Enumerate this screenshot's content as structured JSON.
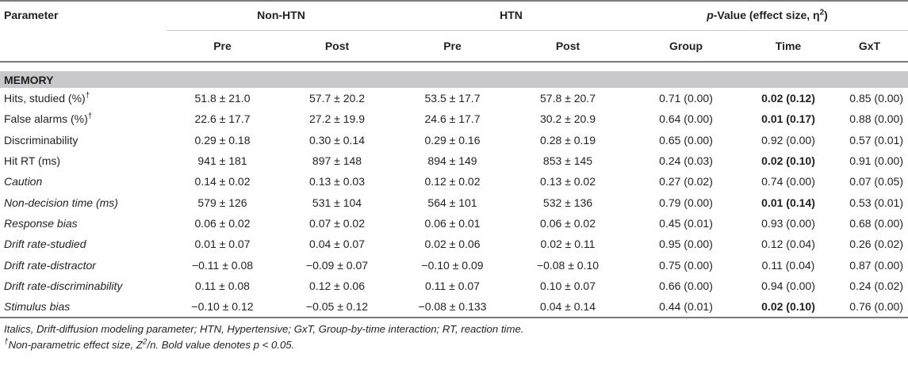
{
  "header": {
    "parameter": "Parameter",
    "group_non_htn": "Non-HTN",
    "group_htn": "HTN",
    "pvalue_p": "p",
    "pvalue_rest": "-Value (effect size, η",
    "pvalue_sup": "2",
    "pvalue_close": ")",
    "pre": "Pre",
    "post": "Post",
    "pre2": "Pre",
    "post2": "Post",
    "group": "Group",
    "time": "Time",
    "gxt": "GxT"
  },
  "section": "MEMORY",
  "rows": [
    {
      "param": "Hits, studied (%)",
      "mark": "†",
      "italic": false,
      "nh_pre": "51.8 ± 21.0",
      "nh_post": "57.7 ± 20.2",
      "h_pre": "53.5 ± 17.7",
      "h_post": "57.8 ± 20.7",
      "group": "0.71 (0.00)",
      "time": "0.02 (0.12)",
      "time_bold": true,
      "gxt": "0.85 (0.00)"
    },
    {
      "param": "False alarms (%)",
      "mark": "†",
      "italic": false,
      "nh_pre": "22.6 ± 17.7",
      "nh_post": "27.2 ± 19.9",
      "h_pre": "24.6 ± 17.7",
      "h_post": "30.2 ± 20.9",
      "group": "0.64 (0.00)",
      "time": "0.01 (0.17)",
      "time_bold": true,
      "gxt": "0.88 (0.00)"
    },
    {
      "param": "Discriminability",
      "mark": "",
      "italic": false,
      "nh_pre": "0.29 ± 0.18",
      "nh_post": "0.30 ± 0.14",
      "h_pre": "0.29 ± 0.16",
      "h_post": "0.28 ± 0.19",
      "group": "0.65 (0.00)",
      "time": "0.92 (0.00)",
      "time_bold": false,
      "gxt": "0.57 (0.01)"
    },
    {
      "param": "Hit RT (ms)",
      "mark": "",
      "italic": false,
      "nh_pre": "941 ± 181",
      "nh_post": "897 ± 148",
      "h_pre": "894 ± 149",
      "h_post": "853 ± 145",
      "group": "0.24 (0.03)",
      "time": "0.02 (0.10)",
      "time_bold": true,
      "gxt": "0.91 (0.00)"
    },
    {
      "param": "Caution",
      "mark": "",
      "italic": true,
      "nh_pre": "0.14 ± 0.02",
      "nh_post": "0.13 ± 0.03",
      "h_pre": "0.12 ± 0.02",
      "h_post": "0.13 ± 0.02",
      "group": "0.27 (0.02)",
      "time": "0.74 (0.00)",
      "time_bold": false,
      "gxt": "0.07 (0.05)"
    },
    {
      "param": "Non-decision time (ms)",
      "mark": "",
      "italic": true,
      "nh_pre": "579 ± 126",
      "nh_post": "531 ± 104",
      "h_pre": "564 ± 101",
      "h_post": "532 ± 136",
      "group": "0.79 (0.00)",
      "time": "0.01 (0.14)",
      "time_bold": true,
      "gxt": "0.53 (0.01)"
    },
    {
      "param": "Response bias",
      "mark": "",
      "italic": true,
      "nh_pre": "0.06 ± 0.02",
      "nh_post": "0.07 ± 0.02",
      "h_pre": "0.06 ± 0.01",
      "h_post": "0.06 ± 0.02",
      "group": "0.45 (0.01)",
      "time": "0.93 (0.00)",
      "time_bold": false,
      "gxt": "0.68 (0.00)"
    },
    {
      "param": "Drift rate-studied",
      "mark": "",
      "italic": true,
      "nh_pre": "0.01 ± 0.07",
      "nh_post": "0.04 ± 0.07",
      "h_pre": "0.02 ± 0.06",
      "h_post": "0.02 ± 0.11",
      "group": "0.95 (0.00)",
      "time": "0.12 (0.04)",
      "time_bold": false,
      "gxt": "0.26 (0.02)"
    },
    {
      "param": "Drift rate-distractor",
      "mark": "",
      "italic": true,
      "nh_pre": "−0.11 ± 0.08",
      "nh_post": "−0.09 ± 0.07",
      "h_pre": "−0.10 ± 0.09",
      "h_post": "−0.08 ± 0.10",
      "group": "0.75 (0.00)",
      "time": "0.11 (0.04)",
      "time_bold": false,
      "gxt": "0.87 (0.00)"
    },
    {
      "param": "Drift rate-discriminability",
      "mark": "",
      "italic": true,
      "nh_pre": "0.11 ± 0.08",
      "nh_post": "0.12 ± 0.06",
      "h_pre": "0.11 ± 0.07",
      "h_post": "0.10 ± 0.07",
      "group": "0.66 (0.00)",
      "time": "0.94 (0.00)",
      "time_bold": false,
      "gxt": "0.24 (0.02)"
    },
    {
      "param": "Stimulus bias",
      "mark": "",
      "italic": true,
      "nh_pre": "−0.10 ± 0.12",
      "nh_post": "−0.05 ± 0.12",
      "h_pre": "−0.08 ± 0.133",
      "h_post": "0.04 ± 0.14",
      "group": "0.44 (0.01)",
      "time": "0.02 (0.10)",
      "time_bold": true,
      "gxt": "0.76 (0.00)"
    }
  ],
  "notes": {
    "line1": "Italics, Drift-diffusion modeling parameter; HTN, Hypertensive; GxT, Group-by-time interaction; RT, reaction time.",
    "line2_mark": "†",
    "line2_a": "Non-parametric effect size, Z",
    "line2_sup": "2",
    "line2_b": "/n. Bold value denotes p < 0.05."
  }
}
